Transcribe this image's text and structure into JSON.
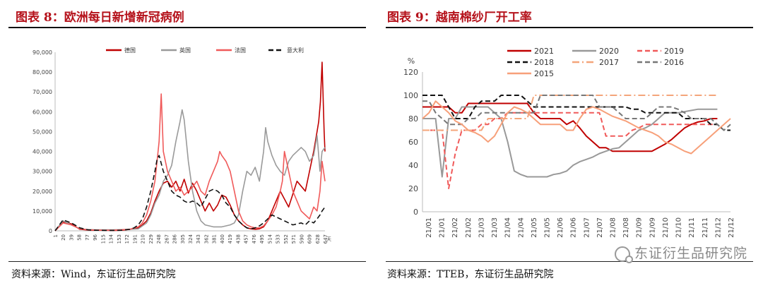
{
  "figure8": {
    "title": "图表 8：欧洲每日新增新冠病例",
    "source": "资料来源：Wind，东证衍生品研究院",
    "x_unit": "天"
  },
  "figure9": {
    "title": "图表 9：越南棉纱厂开工率",
    "source": "资料来源：TTEB，东证衍生品研究院",
    "y_unit": "%"
  },
  "watermark": "东证衍生品研究院",
  "chart_data": [
    {
      "type": "line",
      "title": "图表 8：欧洲每日新增新冠病例",
      "x_unit": "天",
      "xlim": [
        1,
        647
      ],
      "ylim": [
        0,
        90000
      ],
      "yticks": [
        "0",
        "10,000",
        "20,000",
        "30,000",
        "40,000",
        "50,000",
        "60,000",
        "70,000",
        "80,000",
        "90,000"
      ],
      "xticks": [
        "1",
        "20",
        "39",
        "58",
        "77",
        "96",
        "115",
        "134",
        "153",
        "172",
        "191",
        "210",
        "229",
        "248",
        "267",
        "286",
        "305",
        "324",
        "343",
        "362",
        "381",
        "400",
        "419",
        "438",
        "457",
        "476",
        "495",
        "514",
        "533",
        "552",
        "571",
        "590",
        "609",
        "628",
        "647"
      ],
      "legend_position": "top",
      "series": [
        {
          "name": "德国",
          "color": "#c00000",
          "style": "solid",
          "x": [
            1,
            20,
            40,
            60,
            80,
            100,
            120,
            140,
            160,
            180,
            200,
            210,
            220,
            230,
            240,
            250,
            260,
            270,
            280,
            290,
            300,
            310,
            320,
            330,
            340,
            350,
            360,
            370,
            380,
            390,
            400,
            410,
            420,
            430,
            440,
            450,
            460,
            470,
            480,
            490,
            500,
            510,
            520,
            530,
            540,
            560,
            580,
            600,
            610,
            620,
            628,
            632,
            636,
            640,
            645,
            647
          ],
          "y": [
            0,
            4500,
            3500,
            800,
            400,
            300,
            300,
            200,
            300,
            700,
            1500,
            3000,
            5000,
            9000,
            15000,
            20000,
            24000,
            25000,
            22000,
            25000,
            20000,
            26000,
            19000,
            24000,
            20000,
            15000,
            10000,
            14000,
            10000,
            13000,
            18000,
            17000,
            13000,
            8000,
            5000,
            3000,
            1500,
            1000,
            800,
            1000,
            2000,
            5000,
            10000,
            15000,
            20000,
            12000,
            25000,
            20000,
            30000,
            40000,
            50000,
            55000,
            65000,
            85000,
            50000,
            40000
          ]
        },
        {
          "name": "英国",
          "color": "#9a9a9a",
          "style": "solid",
          "x": [
            1,
            20,
            40,
            60,
            80,
            100,
            120,
            140,
            160,
            180,
            200,
            210,
            220,
            230,
            240,
            250,
            260,
            270,
            280,
            290,
            300,
            305,
            310,
            320,
            330,
            340,
            350,
            360,
            370,
            380,
            390,
            400,
            410,
            420,
            430,
            440,
            450,
            460,
            470,
            480,
            490,
            500,
            505,
            510,
            520,
            530,
            540,
            550,
            560,
            570,
            580,
            590,
            600,
            610,
            620,
            628,
            635,
            640,
            647
          ],
          "y": [
            0,
            5000,
            3000,
            1000,
            600,
            500,
            500,
            500,
            600,
            700,
            1000,
            2500,
            4000,
            8000,
            14000,
            18000,
            25000,
            28000,
            33000,
            45000,
            55000,
            61000,
            56000,
            35000,
            20000,
            10000,
            5000,
            3000,
            2500,
            2000,
            2000,
            2000,
            2500,
            3000,
            4000,
            8000,
            20000,
            30000,
            28000,
            32000,
            25000,
            40000,
            52000,
            45000,
            38000,
            33000,
            30000,
            28000,
            35000,
            38000,
            40000,
            42000,
            40000,
            35000,
            38000,
            48000,
            30000,
            40000,
            42000
          ]
        },
        {
          "name": "法国",
          "color": "#f05a5a",
          "style": "solid",
          "x": [
            1,
            20,
            40,
            60,
            80,
            100,
            120,
            140,
            160,
            180,
            200,
            210,
            220,
            230,
            240,
            245,
            250,
            255,
            260,
            270,
            280,
            290,
            300,
            310,
            320,
            330,
            340,
            350,
            360,
            370,
            380,
            390,
            395,
            400,
            410,
            420,
            430,
            440,
            450,
            460,
            470,
            480,
            490,
            500,
            510,
            520,
            530,
            540,
            545,
            550,
            560,
            570,
            580,
            590,
            600,
            610,
            620,
            628,
            635,
            640,
            647
          ],
          "y": [
            0,
            4000,
            3000,
            1000,
            500,
            400,
            300,
            300,
            500,
            800,
            2000,
            4000,
            8000,
            15000,
            25000,
            35000,
            45000,
            69000,
            40000,
            30000,
            25000,
            20000,
            22000,
            18000,
            20000,
            22000,
            25000,
            20000,
            18000,
            25000,
            30000,
            35000,
            40000,
            38000,
            35000,
            30000,
            20000,
            10000,
            5000,
            3000,
            2000,
            1500,
            1500,
            2500,
            5000,
            8000,
            12000,
            20000,
            25000,
            40000,
            30000,
            20000,
            15000,
            10000,
            8000,
            6000,
            12000,
            10000,
            20000,
            35000,
            25000
          ]
        },
        {
          "name": "意大利",
          "color": "#111111",
          "style": "dash",
          "x": [
            1,
            20,
            40,
            60,
            80,
            100,
            120,
            140,
            160,
            180,
            190,
            200,
            210,
            220,
            230,
            240,
            245,
            250,
            260,
            270,
            280,
            290,
            300,
            310,
            320,
            330,
            340,
            350,
            360,
            370,
            380,
            390,
            400,
            410,
            420,
            430,
            440,
            450,
            460,
            470,
            480,
            490,
            500,
            510,
            520,
            530,
            540,
            550,
            560,
            570,
            580,
            590,
            600,
            610,
            620,
            628,
            635,
            640,
            647
          ],
          "y": [
            0,
            5500,
            4000,
            1500,
            500,
            300,
            200,
            200,
            300,
            800,
            1500,
            3000,
            6000,
            12000,
            20000,
            30000,
            36000,
            38000,
            30000,
            25000,
            20000,
            18000,
            17000,
            15000,
            14000,
            15000,
            14000,
            12000,
            16000,
            20000,
            21000,
            20000,
            18000,
            14000,
            12000,
            8000,
            5000,
            3000,
            1500,
            1000,
            1500,
            2500,
            4000,
            6000,
            8000,
            7000,
            6000,
            5000,
            4000,
            3000,
            3500,
            4000,
            3000,
            5000,
            4000,
            6000,
            8000,
            10000,
            12000
          ]
        }
      ]
    },
    {
      "type": "line",
      "title": "图表 9：越南棉纱厂开工率",
      "y_unit": "%",
      "ylim": [
        0,
        120
      ],
      "yticks": [
        "0",
        "20",
        "40",
        "60",
        "80",
        "100",
        "120"
      ],
      "xticks": [
        "21/01",
        "21/01",
        "21/02",
        "21/02",
        "21/03",
        "21/03",
        "21/04",
        "21/04",
        "21/05",
        "21/05",
        "21/06",
        "21/06",
        "21/07",
        "21/07",
        "21/08",
        "21/08",
        "21/09",
        "21/09",
        "21/10",
        "21/10",
        "21/11",
        "21/11",
        "21/12",
        "21/12"
      ],
      "x": [
        0,
        1,
        2,
        3,
        4,
        5,
        6,
        7,
        8,
        9,
        10,
        11,
        12,
        13,
        14,
        15,
        16,
        17,
        18,
        19,
        20,
        21,
        22,
        23,
        24,
        25,
        26,
        27,
        28,
        29,
        30,
        31,
        32,
        33,
        34,
        35,
        36,
        37,
        38,
        39,
        40,
        41,
        42,
        43,
        44,
        45,
        46,
        47
      ],
      "legend_position": "top",
      "series": [
        {
          "name": "2021",
          "color": "#c00000",
          "style": "solid",
          "y": [
            90,
            90,
            90,
            90,
            90,
            85,
            85,
            93,
            93,
            93,
            93,
            93,
            93,
            93,
            93,
            93,
            93,
            85,
            80,
            80,
            80,
            80,
            75,
            78,
            72,
            65,
            60,
            55,
            55,
            52,
            52,
            52,
            52,
            52,
            52,
            52,
            55,
            58,
            62,
            67,
            72,
            75,
            77,
            78,
            80,
            80,
            null,
            null
          ]
        },
        {
          "name": "2020",
          "color": "#999999",
          "style": "solid",
          "y": [
            80,
            80,
            80,
            30,
            80,
            80,
            90,
            90,
            90,
            90,
            90,
            85,
            80,
            60,
            35,
            32,
            30,
            30,
            30,
            30,
            32,
            33,
            35,
            40,
            43,
            45,
            47,
            50,
            52,
            54,
            55,
            60,
            65,
            70,
            72,
            75,
            80,
            85,
            85,
            85,
            86,
            87,
            88,
            88,
            88,
            88,
            null,
            null
          ]
        },
        {
          "name": "2019",
          "color": "#f05a5a",
          "style": "dash",
          "y": [
            70,
            70,
            70,
            70,
            20,
            50,
            70,
            70,
            70,
            75,
            75,
            80,
            80,
            85,
            85,
            85,
            85,
            85,
            85,
            85,
            85,
            85,
            85,
            85,
            85,
            85,
            85,
            85,
            65,
            65,
            65,
            65,
            70,
            72,
            75,
            75,
            75,
            75,
            75,
            75,
            75,
            75,
            75,
            75,
            75,
            75,
            null,
            null
          ]
        },
        {
          "name": "2017",
          "color": "#f4a57a",
          "style": "dashdot",
          "y": [
            70,
            70,
            70,
            70,
            70,
            70,
            70,
            70,
            70,
            70,
            80,
            80,
            80,
            80,
            80,
            80,
            80,
            100,
            100,
            100,
            100,
            100,
            100,
            100,
            100,
            100,
            100,
            100,
            100,
            100,
            100,
            100,
            100,
            100,
            100,
            100,
            100,
            100,
            100,
            100,
            100,
            100,
            100,
            100,
            100,
            100,
            null,
            null
          ]
        },
        {
          "name": "2018",
          "color": "#111111",
          "style": "dash",
          "y": [
            100,
            100,
            100,
            100,
            90,
            80,
            80,
            80,
            90,
            95,
            95,
            95,
            100,
            100,
            100,
            100,
            95,
            90,
            90,
            90,
            90,
            90,
            90,
            90,
            90,
            90,
            90,
            90,
            90,
            90,
            90,
            90,
            88,
            88,
            85,
            85,
            85,
            85,
            85,
            85,
            80,
            80,
            80,
            80,
            75,
            75,
            70,
            70
          ]
        },
        {
          "name": "2016",
          "color": "#777777",
          "style": "dash",
          "y": [
            95,
            95,
            85,
            80,
            75,
            75,
            75,
            80,
            80,
            85,
            85,
            85,
            85,
            85,
            85,
            85,
            85,
            85,
            100,
            100,
            100,
            100,
            100,
            100,
            100,
            100,
            100,
            90,
            90,
            90,
            85,
            80,
            80,
            80,
            80,
            85,
            90,
            90,
            90,
            88,
            85,
            80,
            80,
            80,
            80,
            75,
            70,
            75
          ]
        },
        {
          "name": "2015",
          "color": "#f7a07a",
          "style": "solid",
          "y": [
            80,
            85,
            95,
            90,
            85,
            78,
            75,
            70,
            68,
            65,
            60,
            65,
            75,
            85,
            90,
            88,
            85,
            80,
            75,
            75,
            75,
            75,
            70,
            70,
            80,
            88,
            90,
            88,
            85,
            82,
            80,
            78,
            75,
            72,
            70,
            68,
            65,
            60,
            58,
            55,
            52,
            50,
            55,
            60,
            65,
            70,
            75,
            80
          ]
        }
      ]
    }
  ]
}
